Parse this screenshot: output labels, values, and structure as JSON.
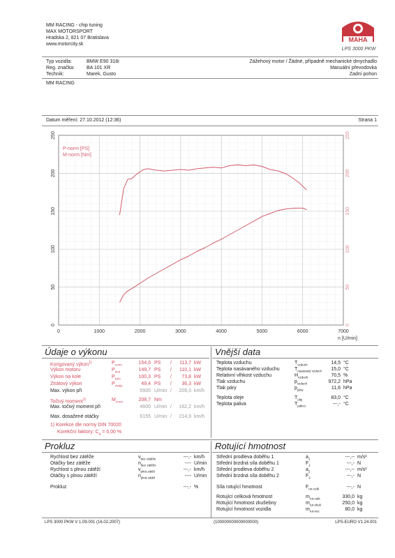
{
  "header": {
    "company_lines": [
      "MM RACING - chip tuning",
      "MAX MOTORSPORT",
      "Hradska 2, 821 07 Bratislava",
      "www.motorcity.sk"
    ],
    "logo_text": "MAHA",
    "logo_subtitle": "LPS 3000 PKW"
  },
  "vehicle": {
    "labels": [
      "Typ vozidla:",
      "Reg. značka:",
      "Technik:"
    ],
    "values": [
      "BMW E90 318i",
      "BA 101 XR",
      "Marek, Gusto"
    ],
    "right_lines": [
      "Zážehový motor / Žádné, případně mechanické dmychadlo",
      "Manuální převodovka",
      "Zadní pohon"
    ]
  },
  "customer_note": "MM RACING",
  "measurement": {
    "date_label": "Datum měření: 27.10.2012 (12:36)",
    "page_label": "Strana 1"
  },
  "chart_data": {
    "type": "line",
    "x_label": "n [U/min]",
    "xlim": [
      0,
      7000
    ],
    "x_ticks": [
      0,
      1000,
      2000,
      3000,
      4000,
      5000,
      6000,
      7000
    ],
    "ylim": [
      0,
      250
    ],
    "y_ticks": [
      0,
      50,
      100,
      150,
      200,
      250
    ],
    "y2_ticks": [
      0,
      50,
      100,
      150,
      200,
      250
    ],
    "legend": [
      "P-norm [PS]",
      "M-norm [Nm]"
    ],
    "legend_position": "top-left",
    "grid": true,
    "series": [
      {
        "name": "M-norm [Nm]",
        "x": [
          1500,
          1600,
          1700,
          1800,
          1900,
          2000,
          2100,
          2200,
          2300,
          2400,
          2600,
          2800,
          3000,
          3200,
          3400,
          3600,
          3800,
          4000,
          4200,
          4400,
          4600,
          4800,
          5000,
          5200,
          5400,
          5600,
          5800,
          5900,
          6000,
          6100
        ],
        "y": [
          145,
          180,
          192,
          193,
          198,
          202,
          205,
          206,
          205,
          204,
          203,
          204,
          205,
          204,
          206,
          207,
          208,
          207,
          210,
          211,
          210,
          211,
          209,
          205,
          203,
          199,
          192,
          188,
          183,
          178
        ]
      },
      {
        "name": "P-norm [PS]",
        "x": [
          1500,
          1600,
          1700,
          1800,
          2000,
          2200,
          2400,
          2600,
          2800,
          3000,
          3200,
          3400,
          3600,
          3800,
          4000,
          4200,
          4400,
          4600,
          4800,
          5000,
          5200,
          5400,
          5600,
          5800,
          6000,
          6100
        ],
        "y": [
          30,
          40,
          45,
          48,
          55,
          62,
          68,
          74,
          80,
          86,
          91,
          97,
          102,
          108,
          113,
          119,
          125,
          131,
          137,
          143,
          147,
          151,
          153,
          154,
          154,
          152
        ]
      }
    ]
  },
  "performance": {
    "title": "Údaje o výkonu",
    "rows": [
      {
        "label": "Korigovaný výkon",
        "sup": "1)",
        "sym": "P",
        "sub": "norm",
        "v1": "154,6",
        "u1": "PS",
        "sep": "/",
        "v2": "113,7",
        "u2": "kW"
      },
      {
        "label": "Výkon motoru",
        "sup": "",
        "sym": "P",
        "sub": "mot",
        "v1": "149,7",
        "u1": "PS",
        "sep": "/",
        "v2": "110,1",
        "u2": "kW"
      },
      {
        "label": "Výkon na kole",
        "sup": "",
        "sym": "P",
        "sub": "kolo",
        "v1": "100,3",
        "u1": "PS",
        "sep": "/",
        "v2": "73,8",
        "u2": "kW"
      },
      {
        "label": "Ztrátový výkon",
        "sup": "",
        "sym": "P",
        "sub": "ztráty",
        "v1": "49,4",
        "u1": "PS",
        "sep": "/",
        "v2": "36,3",
        "u2": "kW"
      },
      {
        "label": "Max. výkon při",
        "sup": "",
        "sym": "",
        "sub": "",
        "v1": "5935",
        "u1": "U/min",
        "sep": "/",
        "v2": "209,3",
        "u2": "km/h"
      },
      {
        "label": "Točivý moment",
        "sup": "1)",
        "sym": "M",
        "sub": "norm",
        "v1": "208,7",
        "u1": "Nm",
        "sep": "",
        "v2": "",
        "u2": ""
      },
      {
        "label": "Max. točivý moment při",
        "sup": "",
        "sym": "",
        "sub": "",
        "v1": "4600",
        "u1": "U/min",
        "sep": "/",
        "v2": "162,2",
        "u2": "km/h"
      },
      {
        "label": "Max. dosažené otáčky",
        "sup": "",
        "sym": "",
        "sub": "",
        "v1": "6155",
        "u1": "U/min",
        "sep": "/",
        "v2": "214,9",
        "u2": "km/h"
      }
    ],
    "footnote1": "1) Korekce dle normy DIN 70020",
    "footnote2": "Korekční faktory:",
    "cf_sym": "C",
    "cf_sub": "a",
    "cf_value": "= 0,00 %"
  },
  "external": {
    "title": "Vnější data",
    "rows": [
      {
        "label": "Teplota vzduchu",
        "sym": "T",
        "sub": "vzduch",
        "value": "14,5",
        "unit": "°C"
      },
      {
        "label": "Teplota nasávaného vzduchu",
        "sym": "T",
        "sub": "nasávaný vzduch",
        "value": "15,0",
        "unit": "°C"
      },
      {
        "label": "Relativní vlhkost vzduchu",
        "sym": "H",
        "sub": "vzduch",
        "value": "70,5",
        "unit": "%"
      },
      {
        "label": "Tlak vzduchu",
        "sym": "p",
        "sub": "vzduch",
        "value": "972,2",
        "unit": "hPa"
      },
      {
        "label": "Tlak páry",
        "sym": "p",
        "sub": "páry",
        "value": "11,6",
        "unit": "hPa"
      },
      {
        "label": "Teplota oleje",
        "sym": "T",
        "sub": "olej",
        "value": "83,0",
        "unit": "°C"
      },
      {
        "label": "Teplota paliva",
        "sym": "T",
        "sub": "palivo",
        "value": "---,-",
        "unit": "°C"
      }
    ]
  },
  "prokluz": {
    "title": "Prokluz",
    "rows": [
      {
        "label": "Rychlost bez zátěže",
        "sym": "v",
        "sub": "bez zátěže",
        "value": "---,-",
        "unit": "km/h"
      },
      {
        "label": "Otáčky bez zátěže",
        "sym": "n",
        "sub": "bez zátěže",
        "value": "----",
        "unit": "U/min"
      },
      {
        "label": "Rychlost s plnou zátěží",
        "sym": "v",
        "sub": "plná zátěž",
        "value": "---,-",
        "unit": "km/h"
      },
      {
        "label": "Otáčky s plnou zátěží",
        "sym": "n",
        "sub": "plná zátěž",
        "value": "----",
        "unit": "U/min"
      },
      {
        "label": "Prokluz",
        "sym": "",
        "sub": "",
        "value": "---,-",
        "unit": "%"
      }
    ]
  },
  "rotating": {
    "title": "Rotující hmotnost",
    "rows": [
      {
        "label": "Střední prodleva doběhu 1",
        "sym": "a",
        "sub": "1",
        "value": "---,--",
        "unit": "m/s²"
      },
      {
        "label": "Střední brzdná síla doběhu 1",
        "sym": "F",
        "sub": "1",
        "value": "---,-",
        "unit": "N"
      },
      {
        "label": "Střední prodleva doběhu 2",
        "sym": "a",
        "sub": "2",
        "value": "---,--",
        "unit": "m/s²"
      },
      {
        "label": "Střední brzdná síla doběhu 2",
        "sym": "F",
        "sub": "2",
        "value": "---,-",
        "unit": "N"
      },
      {
        "label": "Síla rotující hmotnost",
        "sym": "F",
        "sub": "rot-celk",
        "value": "---,-",
        "unit": "N"
      },
      {
        "label": "Rotující celková hmotnost",
        "sym": "m",
        "sub": "rot-celk",
        "value": "330,0",
        "unit": "kg"
      },
      {
        "label": "Rotující hmotnost zkušebny",
        "sym": "m",
        "sub": "rot-zkuš",
        "value": "250,0",
        "unit": "kg"
      },
      {
        "label": "Rotující hmotnost vozidla",
        "sym": "m",
        "sub": "rot-voz",
        "value": "80,0",
        "unit": "kg"
      }
    ]
  },
  "footer": {
    "left": "LPS 3000 PKW V 1.09.001 (16.02.2007)",
    "center": "(100000000000000000)",
    "right": "LPS-EURO V1.24.001"
  },
  "colors": {
    "power_curve": "#d25a6a",
    "torque_curve": "#d25a6a",
    "logo_red": "#c8373f",
    "grid": "#c8c8c8"
  }
}
